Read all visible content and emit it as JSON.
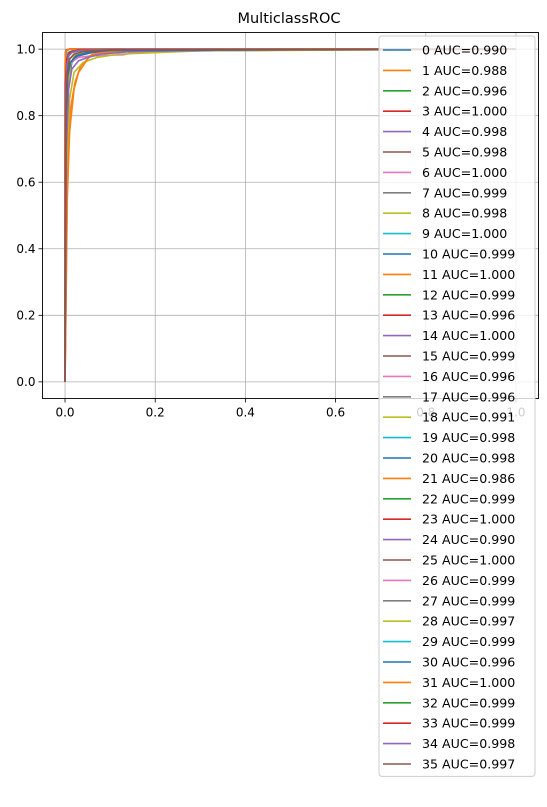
{
  "chart_data": {
    "type": "line",
    "title": "MulticlassROC",
    "xlabel": "",
    "ylabel": "",
    "xlim": [
      -0.05,
      1.05
    ],
    "ylim": [
      -0.05,
      1.05
    ],
    "xticks": [
      "0.0",
      "0.2",
      "0.4",
      "0.6",
      "0.8",
      "1.0"
    ],
    "yticks": [
      "0.0",
      "0.2",
      "0.4",
      "0.6",
      "0.8",
      "1.0"
    ],
    "grid": true,
    "legend_position": "upper-right",
    "palette": [
      "#1f77b4",
      "#ff7f0e",
      "#2ca02c",
      "#d62728",
      "#9467bd",
      "#8c564b",
      "#e377c2",
      "#7f7f7f",
      "#bcbd22",
      "#17becf"
    ],
    "series": [
      {
        "name": "0 AUC=0.990",
        "x": [
          0,
          0.003,
          0.008,
          0.015,
          0.03,
          0.06,
          0.12,
          0.2,
          0.3,
          0.5,
          0.8,
          1.0
        ],
        "y": [
          0,
          0.75,
          0.9,
          0.96,
          0.98,
          0.99,
          0.993,
          0.993,
          0.995,
          0.997,
          0.999,
          1.0
        ]
      },
      {
        "name": "1 AUC=0.988",
        "x": [
          0,
          0.005,
          0.012,
          0.022,
          0.035,
          0.05,
          0.06,
          0.09,
          0.15,
          0.3,
          1.0
        ],
        "y": [
          0,
          0.6,
          0.82,
          0.9,
          0.95,
          0.97,
          0.985,
          0.99,
          0.995,
          0.998,
          1.0
        ]
      },
      {
        "name": "2 AUC=0.996",
        "x": [
          0,
          0.002,
          0.005,
          0.01,
          0.02,
          0.05,
          0.1,
          0.3,
          1.0
        ],
        "y": [
          0,
          0.8,
          0.93,
          0.97,
          0.985,
          0.992,
          0.996,
          0.999,
          1.0
        ]
      },
      {
        "name": "3 AUC=1.000",
        "x": [
          0,
          0.0005,
          0.001,
          0.003,
          0.01,
          1.0
        ],
        "y": [
          0,
          0.95,
          0.99,
          0.998,
          1.0,
          1.0
        ]
      },
      {
        "name": "4 AUC=0.998",
        "x": [
          0,
          0.002,
          0.004,
          0.008,
          0.015,
          0.03,
          0.1,
          1.0
        ],
        "y": [
          0,
          0.85,
          0.95,
          0.98,
          0.99,
          0.995,
          0.999,
          1.0
        ]
      },
      {
        "name": "5 AUC=0.998",
        "x": [
          0,
          0.002,
          0.004,
          0.008,
          0.015,
          0.03,
          0.1,
          1.0
        ],
        "y": [
          0,
          0.86,
          0.95,
          0.98,
          0.99,
          0.996,
          0.999,
          1.0
        ]
      },
      {
        "name": "6 AUC=1.000",
        "x": [
          0,
          0.001,
          0.003,
          0.01,
          1.0
        ],
        "y": [
          0,
          0.97,
          0.995,
          1.0,
          1.0
        ]
      },
      {
        "name": "7 AUC=0.999",
        "x": [
          0,
          0.001,
          0.003,
          0.007,
          0.02,
          1.0
        ],
        "y": [
          0,
          0.9,
          0.97,
          0.99,
          0.998,
          1.0
        ]
      },
      {
        "name": "8 AUC=0.998",
        "x": [
          0,
          0.003,
          0.006,
          0.012,
          0.02,
          0.04,
          0.1,
          1.0
        ],
        "y": [
          0,
          0.7,
          0.88,
          0.95,
          0.98,
          0.99,
          0.998,
          1.0
        ]
      },
      {
        "name": "9 AUC=1.000",
        "x": [
          0,
          0.001,
          0.003,
          0.01,
          1.0
        ],
        "y": [
          0,
          0.96,
          0.995,
          1.0,
          1.0
        ]
      },
      {
        "name": "10 AUC=0.999",
        "x": [
          0,
          0.001,
          0.004,
          0.01,
          0.03,
          1.0
        ],
        "y": [
          0,
          0.88,
          0.97,
          0.99,
          0.998,
          1.0
        ]
      },
      {
        "name": "11 AUC=1.000",
        "x": [
          0,
          0.0005,
          0.002,
          0.01,
          1.0
        ],
        "y": [
          0,
          0.98,
          0.997,
          1.0,
          1.0
        ]
      },
      {
        "name": "12 AUC=0.999",
        "x": [
          0,
          0.001,
          0.004,
          0.01,
          0.03,
          1.0
        ],
        "y": [
          0,
          0.89,
          0.97,
          0.99,
          0.998,
          1.0
        ]
      },
      {
        "name": "13 AUC=0.996",
        "x": [
          0,
          0.002,
          0.006,
          0.012,
          0.025,
          0.05,
          0.1,
          1.0
        ],
        "y": [
          0,
          0.78,
          0.92,
          0.96,
          0.98,
          0.99,
          0.996,
          1.0
        ]
      },
      {
        "name": "14 AUC=1.000",
        "x": [
          0,
          0.0005,
          0.002,
          0.01,
          1.0
        ],
        "y": [
          0,
          0.97,
          0.996,
          1.0,
          1.0
        ]
      },
      {
        "name": "15 AUC=0.999",
        "x": [
          0,
          0.001,
          0.004,
          0.01,
          0.03,
          1.0
        ],
        "y": [
          0,
          0.9,
          0.97,
          0.99,
          0.998,
          1.0
        ]
      },
      {
        "name": "16 AUC=0.996",
        "x": [
          0,
          0.002,
          0.006,
          0.012,
          0.03,
          0.06,
          0.1,
          0.13,
          0.15,
          0.3,
          1.0
        ],
        "y": [
          0,
          0.8,
          0.92,
          0.96,
          0.975,
          0.98,
          0.982,
          0.983,
          0.99,
          0.997,
          1.0
        ]
      },
      {
        "name": "17 AUC=0.996",
        "x": [
          0,
          0.002,
          0.006,
          0.012,
          0.025,
          0.05,
          0.1,
          1.0
        ],
        "y": [
          0,
          0.79,
          0.92,
          0.96,
          0.98,
          0.99,
          0.996,
          1.0
        ]
      },
      {
        "name": "18 AUC=0.991",
        "x": [
          0,
          0.004,
          0.01,
          0.02,
          0.04,
          0.07,
          0.12,
          0.3,
          1.0
        ],
        "y": [
          0,
          0.65,
          0.85,
          0.93,
          0.96,
          0.975,
          0.985,
          0.995,
          1.0
        ]
      },
      {
        "name": "19 AUC=0.998",
        "x": [
          0,
          0.002,
          0.004,
          0.008,
          0.015,
          0.03,
          0.1,
          1.0
        ],
        "y": [
          0,
          0.86,
          0.95,
          0.98,
          0.99,
          0.996,
          0.999,
          1.0
        ]
      },
      {
        "name": "20 AUC=0.998",
        "x": [
          0,
          0.002,
          0.004,
          0.008,
          0.015,
          0.03,
          0.1,
          1.0
        ],
        "y": [
          0,
          0.85,
          0.95,
          0.98,
          0.99,
          0.995,
          0.999,
          1.0
        ]
      },
      {
        "name": "21 AUC=0.986",
        "x": [
          0,
          0.005,
          0.01,
          0.02,
          0.03,
          0.045,
          0.055,
          0.08,
          0.12,
          0.3,
          1.0
        ],
        "y": [
          0,
          0.55,
          0.75,
          0.88,
          0.93,
          0.96,
          0.98,
          0.99,
          0.995,
          0.998,
          1.0
        ]
      },
      {
        "name": "22 AUC=0.999",
        "x": [
          0,
          0.001,
          0.004,
          0.01,
          0.03,
          1.0
        ],
        "y": [
          0,
          0.9,
          0.97,
          0.99,
          0.998,
          1.0
        ]
      },
      {
        "name": "23 AUC=1.000",
        "x": [
          0,
          0.0005,
          0.002,
          0.01,
          1.0
        ],
        "y": [
          0,
          0.97,
          0.996,
          1.0,
          1.0
        ]
      },
      {
        "name": "24 AUC=0.990",
        "x": [
          0,
          0.003,
          0.008,
          0.015,
          0.03,
          0.05,
          0.08,
          0.15,
          0.4,
          1.0
        ],
        "y": [
          0,
          0.7,
          0.88,
          0.94,
          0.965,
          0.975,
          0.985,
          0.993,
          0.998,
          1.0
        ]
      },
      {
        "name": "25 AUC=1.000",
        "x": [
          0,
          0.0005,
          0.002,
          0.01,
          1.0
        ],
        "y": [
          0,
          0.97,
          0.996,
          1.0,
          1.0
        ]
      },
      {
        "name": "26 AUC=0.999",
        "x": [
          0,
          0.001,
          0.004,
          0.01,
          0.03,
          1.0
        ],
        "y": [
          0,
          0.89,
          0.97,
          0.99,
          0.998,
          1.0
        ]
      },
      {
        "name": "27 AUC=0.999",
        "x": [
          0,
          0.001,
          0.004,
          0.01,
          0.03,
          1.0
        ],
        "y": [
          0,
          0.9,
          0.97,
          0.99,
          0.998,
          1.0
        ]
      },
      {
        "name": "28 AUC=0.997",
        "x": [
          0,
          0.002,
          0.005,
          0.01,
          0.02,
          0.04,
          0.1,
          1.0
        ],
        "y": [
          0,
          0.82,
          0.93,
          0.97,
          0.985,
          0.993,
          0.998,
          1.0
        ]
      },
      {
        "name": "29 AUC=0.999",
        "x": [
          0,
          0.001,
          0.004,
          0.01,
          0.03,
          1.0
        ],
        "y": [
          0,
          0.9,
          0.97,
          0.99,
          0.998,
          1.0
        ]
      },
      {
        "name": "30 AUC=0.996",
        "x": [
          0,
          0.002,
          0.006,
          0.012,
          0.025,
          0.05,
          0.1,
          1.0
        ],
        "y": [
          0,
          0.78,
          0.92,
          0.96,
          0.98,
          0.99,
          0.996,
          1.0
        ]
      },
      {
        "name": "31 AUC=1.000",
        "x": [
          0,
          0.0005,
          0.002,
          0.01,
          1.0
        ],
        "y": [
          0,
          0.97,
          0.996,
          1.0,
          1.0
        ]
      },
      {
        "name": "32 AUC=0.999",
        "x": [
          0,
          0.001,
          0.004,
          0.01,
          0.03,
          1.0
        ],
        "y": [
          0,
          0.9,
          0.97,
          0.99,
          0.998,
          1.0
        ]
      },
      {
        "name": "33 AUC=0.999",
        "x": [
          0,
          0.001,
          0.004,
          0.01,
          0.03,
          1.0
        ],
        "y": [
          0,
          0.9,
          0.97,
          0.99,
          0.998,
          1.0
        ]
      },
      {
        "name": "34 AUC=0.998",
        "x": [
          0,
          0.002,
          0.004,
          0.008,
          0.015,
          0.03,
          0.1,
          1.0
        ],
        "y": [
          0,
          0.86,
          0.95,
          0.98,
          0.99,
          0.996,
          0.999,
          1.0
        ]
      },
      {
        "name": "35 AUC=0.997",
        "x": [
          0,
          0.002,
          0.005,
          0.01,
          0.02,
          0.04,
          0.1,
          1.0
        ],
        "y": [
          0,
          0.82,
          0.93,
          0.97,
          0.985,
          0.993,
          0.998,
          1.0
        ]
      }
    ]
  }
}
